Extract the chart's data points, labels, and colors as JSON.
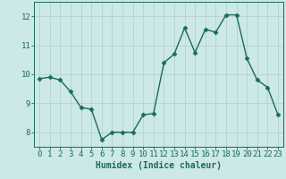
{
  "x": [
    0,
    1,
    2,
    3,
    4,
    5,
    6,
    7,
    8,
    9,
    10,
    11,
    12,
    13,
    14,
    15,
    16,
    17,
    18,
    19,
    20,
    21,
    22,
    23
  ],
  "y": [
    9.85,
    9.9,
    9.8,
    9.4,
    8.85,
    8.8,
    7.75,
    8.0,
    8.0,
    8.0,
    8.6,
    8.65,
    10.4,
    10.7,
    11.6,
    10.75,
    11.55,
    11.45,
    12.05,
    12.05,
    10.55,
    9.8,
    9.55,
    8.6
  ],
  "line_color": "#1a6b5a",
  "marker": "D",
  "markersize": 2.5,
  "linewidth": 1.0,
  "bg_color": "#cce8e8",
  "grid_color": "#b8d4d4",
  "xlabel": "Humidex (Indice chaleur)",
  "xlabel_fontsize": 7,
  "ylim": [
    7.5,
    12.5
  ],
  "yticks": [
    8,
    9,
    10,
    11,
    12
  ],
  "xticks": [
    0,
    1,
    2,
    3,
    4,
    5,
    6,
    7,
    8,
    9,
    10,
    11,
    12,
    13,
    14,
    15,
    16,
    17,
    18,
    19,
    20,
    21,
    22,
    23
  ],
  "tick_fontsize": 6.5
}
